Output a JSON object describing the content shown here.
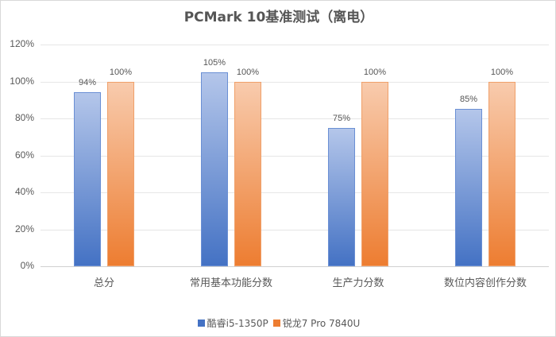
{
  "chart_data": {
    "type": "bar",
    "title": "PCMark 10基准测试（离电）",
    "xlabel": "",
    "ylabel": "",
    "ylim": [
      0,
      120
    ],
    "yticks": [
      "0%",
      "20%",
      "40%",
      "60%",
      "80%",
      "100%",
      "120%"
    ],
    "grid": true,
    "legend_position": "bottom",
    "categories": [
      "总分",
      "常用基本功能分数",
      "生产力分数",
      "数位内容创作分数"
    ],
    "series": [
      {
        "name": "酷睿i5-1350P",
        "color": "#4472c4",
        "values": [
          94,
          105,
          75,
          85
        ],
        "labels": [
          "94%",
          "105%",
          "75%",
          "85%"
        ]
      },
      {
        "name": "锐龙7 Pro 7840U",
        "color": "#ed7d31",
        "values": [
          100,
          100,
          100,
          100
        ],
        "labels": [
          "100%",
          "100%",
          "100%",
          "100%"
        ]
      }
    ]
  }
}
